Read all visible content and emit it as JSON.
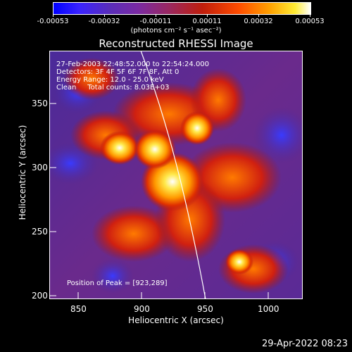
{
  "colorbar": {
    "labels": [
      "-0.00053",
      "-0.00032",
      "-0.00011",
      "0.00011",
      "0.00032",
      "0.00053"
    ],
    "units": "(photons cm⁻² s⁻¹ asec⁻²)"
  },
  "title": "Reconstructed RHESSI Image",
  "info": {
    "line1": "27-Feb-2003 22:48:52.000 to 22:54:24.000",
    "line2": "Detectors: 3F 4F 5F 6F 7F 8F, Att 0",
    "line3": "Energy Range: 12.0 - 25.0 keV",
    "line4": "Clean     Total counts: 8.03E+03",
    "peak": "Position of Peak = [923,289]"
  },
  "axes": {
    "xlabel": "Heliocentric X (arcsec)",
    "ylabel": "Heliocentric Y (arcsec)",
    "xticks": [
      "850",
      "900",
      "950",
      "1000"
    ],
    "yticks": [
      "350",
      "300",
      "250",
      "200"
    ]
  },
  "footer_date": "29-Apr-2022 08:23",
  "colors": {
    "limb": "#ffffff",
    "background": "#000000"
  }
}
